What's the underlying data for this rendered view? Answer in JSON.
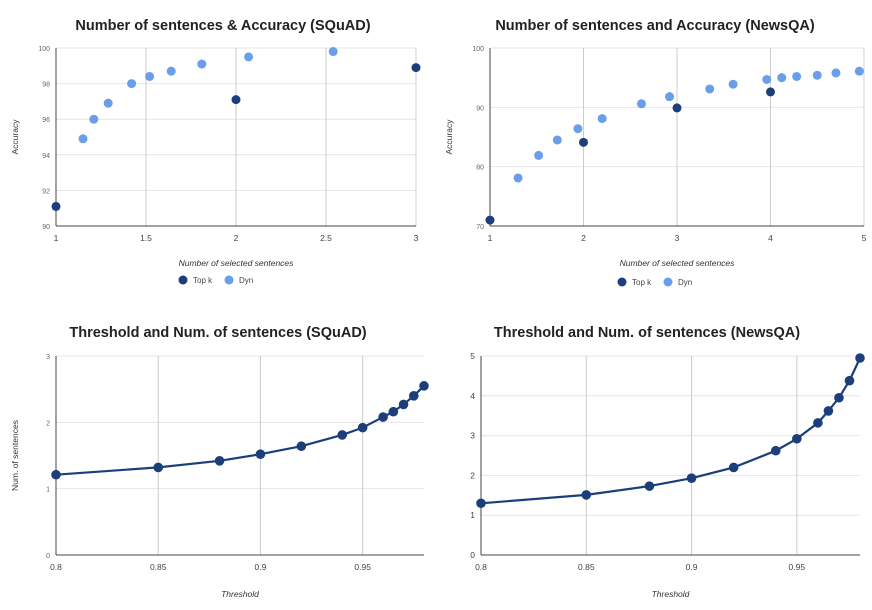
{
  "colors": {
    "topk": "#1c3f7c",
    "dyn": "#6b9ee8",
    "line": "#1c3f7c"
  },
  "chart_data": [
    {
      "type": "scatter",
      "title": "Number of sentences & Accuracy (SQuAD)",
      "xlabel": "Number of selected sentences",
      "ylabel": "Accuracy",
      "xlim": [
        1,
        3
      ],
      "ylim": [
        90,
        100
      ],
      "x_ticks": [
        "1",
        "1.5",
        "2",
        "2.5",
        "3"
      ],
      "y_ticks": [
        "90",
        "92",
        "94",
        "96",
        "98",
        "100"
      ],
      "legend": [
        "Top k",
        "Dyn"
      ],
      "series": [
        {
          "name": "Top k",
          "x": [
            1,
            2,
            3
          ],
          "y": [
            91.1,
            97.1,
            98.9
          ]
        },
        {
          "name": "Dyn",
          "x": [
            1.15,
            1.21,
            1.29,
            1.42,
            1.52,
            1.64,
            1.81,
            2.07,
            2.54
          ],
          "y": [
            94.9,
            96.0,
            96.9,
            98.0,
            98.4,
            98.7,
            99.1,
            99.5,
            99.8
          ]
        }
      ]
    },
    {
      "type": "scatter",
      "title": "Number of sentences and Accuracy (NewsQA)",
      "xlabel": "Number of selected sentences",
      "ylabel": "Accuracy",
      "xlim": [
        1,
        5
      ],
      "ylim": [
        70,
        100
      ],
      "x_ticks": [
        "1",
        "2",
        "3",
        "4",
        "5"
      ],
      "y_ticks": [
        "70",
        "80",
        "90",
        "100"
      ],
      "legend": [
        "Top k",
        "Dyn"
      ],
      "series": [
        {
          "name": "Top k",
          "x": [
            1,
            2,
            3,
            4
          ],
          "y": [
            71.0,
            84.1,
            89.9,
            92.6
          ]
        },
        {
          "name": "Dyn",
          "x": [
            1.3,
            1.52,
            1.72,
            1.94,
            2.2,
            2.62,
            2.92,
            3.35,
            3.6,
            3.96,
            4.12,
            4.28,
            4.5,
            4.7,
            4.95
          ],
          "y": [
            78.1,
            81.9,
            84.5,
            86.4,
            88.1,
            90.6,
            91.8,
            93.1,
            93.9,
            94.7,
            95.0,
            95.2,
            95.4,
            95.8,
            96.1
          ]
        }
      ]
    },
    {
      "type": "line",
      "title": "Threshold and Num. of sentences (SQuAD)",
      "xlabel": "Threshold",
      "ylabel": "Num. of sentences",
      "xlim": [
        0.8,
        0.98
      ],
      "ylim": [
        0,
        3
      ],
      "x_ticks": [
        "0.8",
        "0.85",
        "0.9",
        "0.95"
      ],
      "y_ticks": [
        "0",
        "1",
        "2",
        "3"
      ],
      "series": [
        {
          "name": "Num. of sentences",
          "x": [
            0.8,
            0.85,
            0.88,
            0.9,
            0.92,
            0.94,
            0.95,
            0.96,
            0.965,
            0.97,
            0.975,
            0.98
          ],
          "y": [
            1.21,
            1.32,
            1.42,
            1.52,
            1.64,
            1.81,
            1.92,
            2.08,
            2.16,
            2.27,
            2.4,
            2.55
          ]
        }
      ]
    },
    {
      "type": "line",
      "title": "Threshold and Num. of sentences (NewsQA)",
      "xlabel": "Threshold",
      "ylabel": "",
      "xlim": [
        0.8,
        0.98
      ],
      "ylim": [
        0,
        5
      ],
      "x_ticks": [
        "0.8",
        "0.85",
        "0.9",
        "0.95"
      ],
      "y_ticks": [
        "0",
        "1",
        "2",
        "3",
        "4",
        "5"
      ],
      "series": [
        {
          "name": "Num. of sentences",
          "x": [
            0.8,
            0.85,
            0.88,
            0.9,
            0.92,
            0.94,
            0.95,
            0.96,
            0.965,
            0.97,
            0.975,
            0.98
          ],
          "y": [
            1.3,
            1.51,
            1.73,
            1.93,
            2.2,
            2.62,
            2.92,
            3.32,
            3.62,
            3.95,
            4.38,
            4.95
          ]
        }
      ]
    }
  ]
}
